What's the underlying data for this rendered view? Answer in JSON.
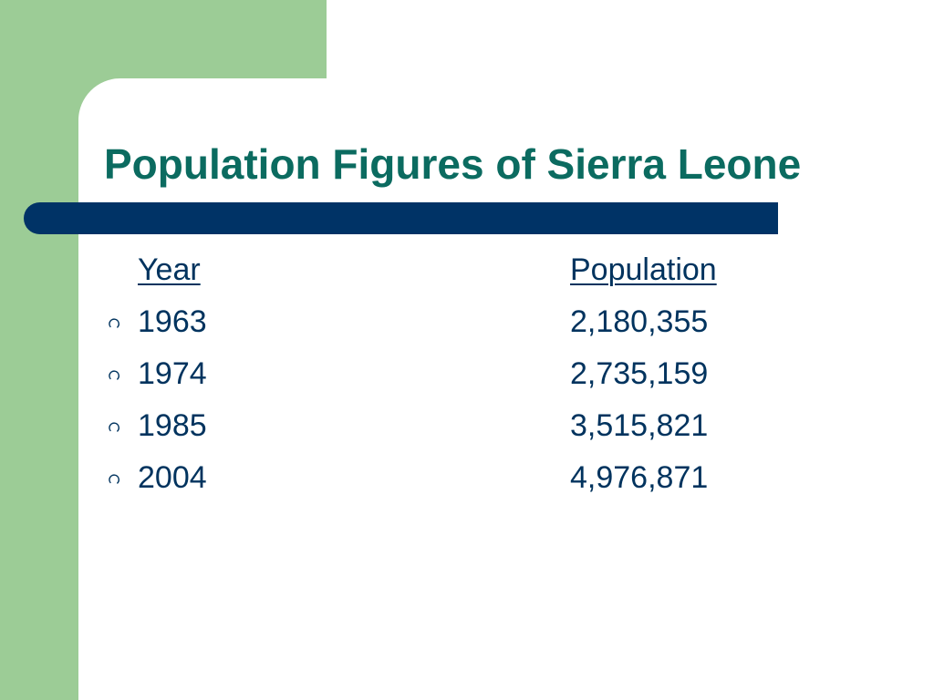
{
  "colors": {
    "background_band": "#9ccc96",
    "title": "#0b6b60",
    "rule_bar": "#003366",
    "body_text": "#00335e"
  },
  "slide": {
    "title": "Population Figures of Sierra Leone"
  },
  "table": {
    "headers": {
      "year": "Year",
      "population": "Population"
    },
    "rows": [
      {
        "year": "1963",
        "population": "2,180,355"
      },
      {
        "year": "1974",
        "population": "2,735,159"
      },
      {
        "year": "1985",
        "population": "3,515,821"
      },
      {
        "year": "2004",
        "population": "4,976,871"
      }
    ],
    "bullet_icon": "circle-bullet-icon"
  }
}
